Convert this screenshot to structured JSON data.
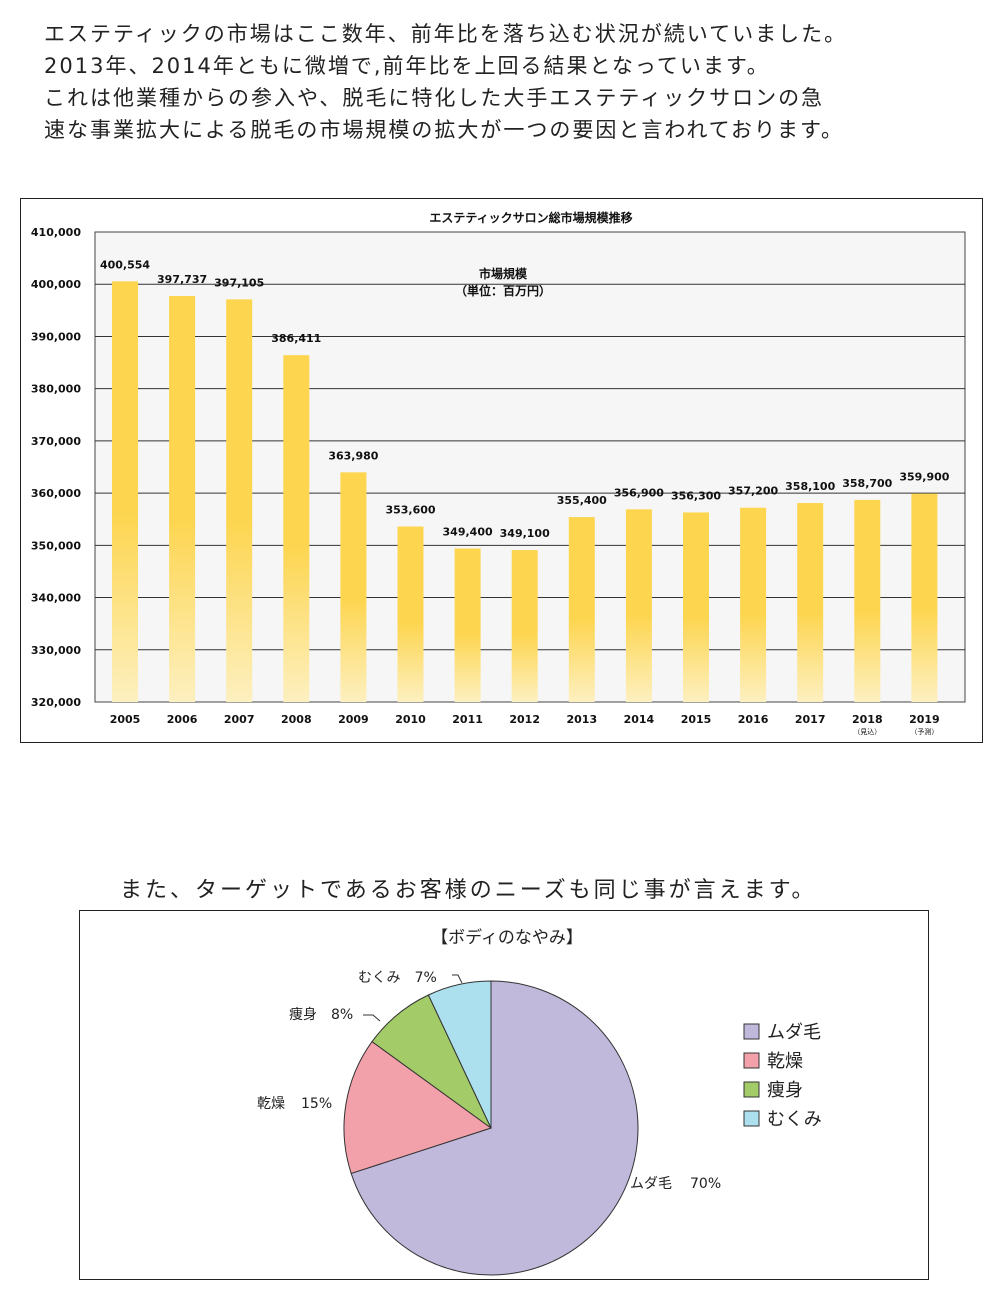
{
  "intro": {
    "lines": [
      "エステティックの市場はここ数年、前年比を落ち込む状況が続いていました。",
      "2013年、2014年ともに微増で,前年比を上回る結果となっています。",
      "これは他業種からの参入や、脱毛に特化した大手エステティックサロンの急",
      "速な事業拡大による脱毛の市場規模の拡大が一つの要因と言われております。"
    ]
  },
  "caption": "また、ターゲットであるお客様のニーズも同じ事が言えます。",
  "colors": {
    "bar_top": "#fdd54f",
    "bar_bottom": "#fdf0c0",
    "plot_bg": "#f6f6f6"
  },
  "chart_data": [
    {
      "type": "bar",
      "title": "エステティックサロン総市場規模推移",
      "annotation": [
        "市場規模",
        "（単位：百万円）"
      ],
      "categories": [
        "2005",
        "2006",
        "2007",
        "2008",
        "2009",
        "2010",
        "2011",
        "2012",
        "2013",
        "2014",
        "2015",
        "2016",
        "2017",
        "2018",
        "2019"
      ],
      "category_notes": [
        "",
        "",
        "",
        "",
        "",
        "",
        "",
        "",
        "",
        "",
        "",
        "",
        "",
        "（見込）",
        "（予測）"
      ],
      "values": [
        400554,
        397737,
        397105,
        386411,
        363980,
        353600,
        349400,
        349100,
        355400,
        356900,
        356300,
        357200,
        358100,
        358700,
        359900
      ],
      "value_labels": [
        "400,554",
        "397,737",
        "397,105",
        "386,411",
        "363,980",
        "353,600",
        "349,400",
        "349,100",
        "355,400",
        "356,900",
        "356,300",
        "357,200",
        "358,100",
        "358,700",
        "359,900"
      ],
      "ylim": [
        320000,
        410000
      ],
      "yticks": [
        320000,
        330000,
        340000,
        350000,
        360000,
        370000,
        380000,
        390000,
        400000,
        410000
      ],
      "ytick_labels": [
        "320,000",
        "330,000",
        "340,000",
        "350,000",
        "360,000",
        "370,000",
        "380,000",
        "390,000",
        "400,000",
        "410,000"
      ],
      "grid": true,
      "xlabel": "",
      "ylabel": ""
    },
    {
      "type": "pie",
      "title": "【ボディのなやみ】",
      "slices": [
        {
          "name": "ムダ毛",
          "value": 70,
          "label": "70%",
          "color": "#c0b9dc"
        },
        {
          "name": "乾燥",
          "value": 15,
          "label": "15%",
          "color": "#f2a0aa"
        },
        {
          "name": "痩身",
          "value": 8,
          "label": "8%",
          "color": "#a3cb68"
        },
        {
          "name": "むくみ",
          "value": 7,
          "label": "7%",
          "color": "#ade0ef"
        }
      ],
      "legend": "right"
    }
  ]
}
